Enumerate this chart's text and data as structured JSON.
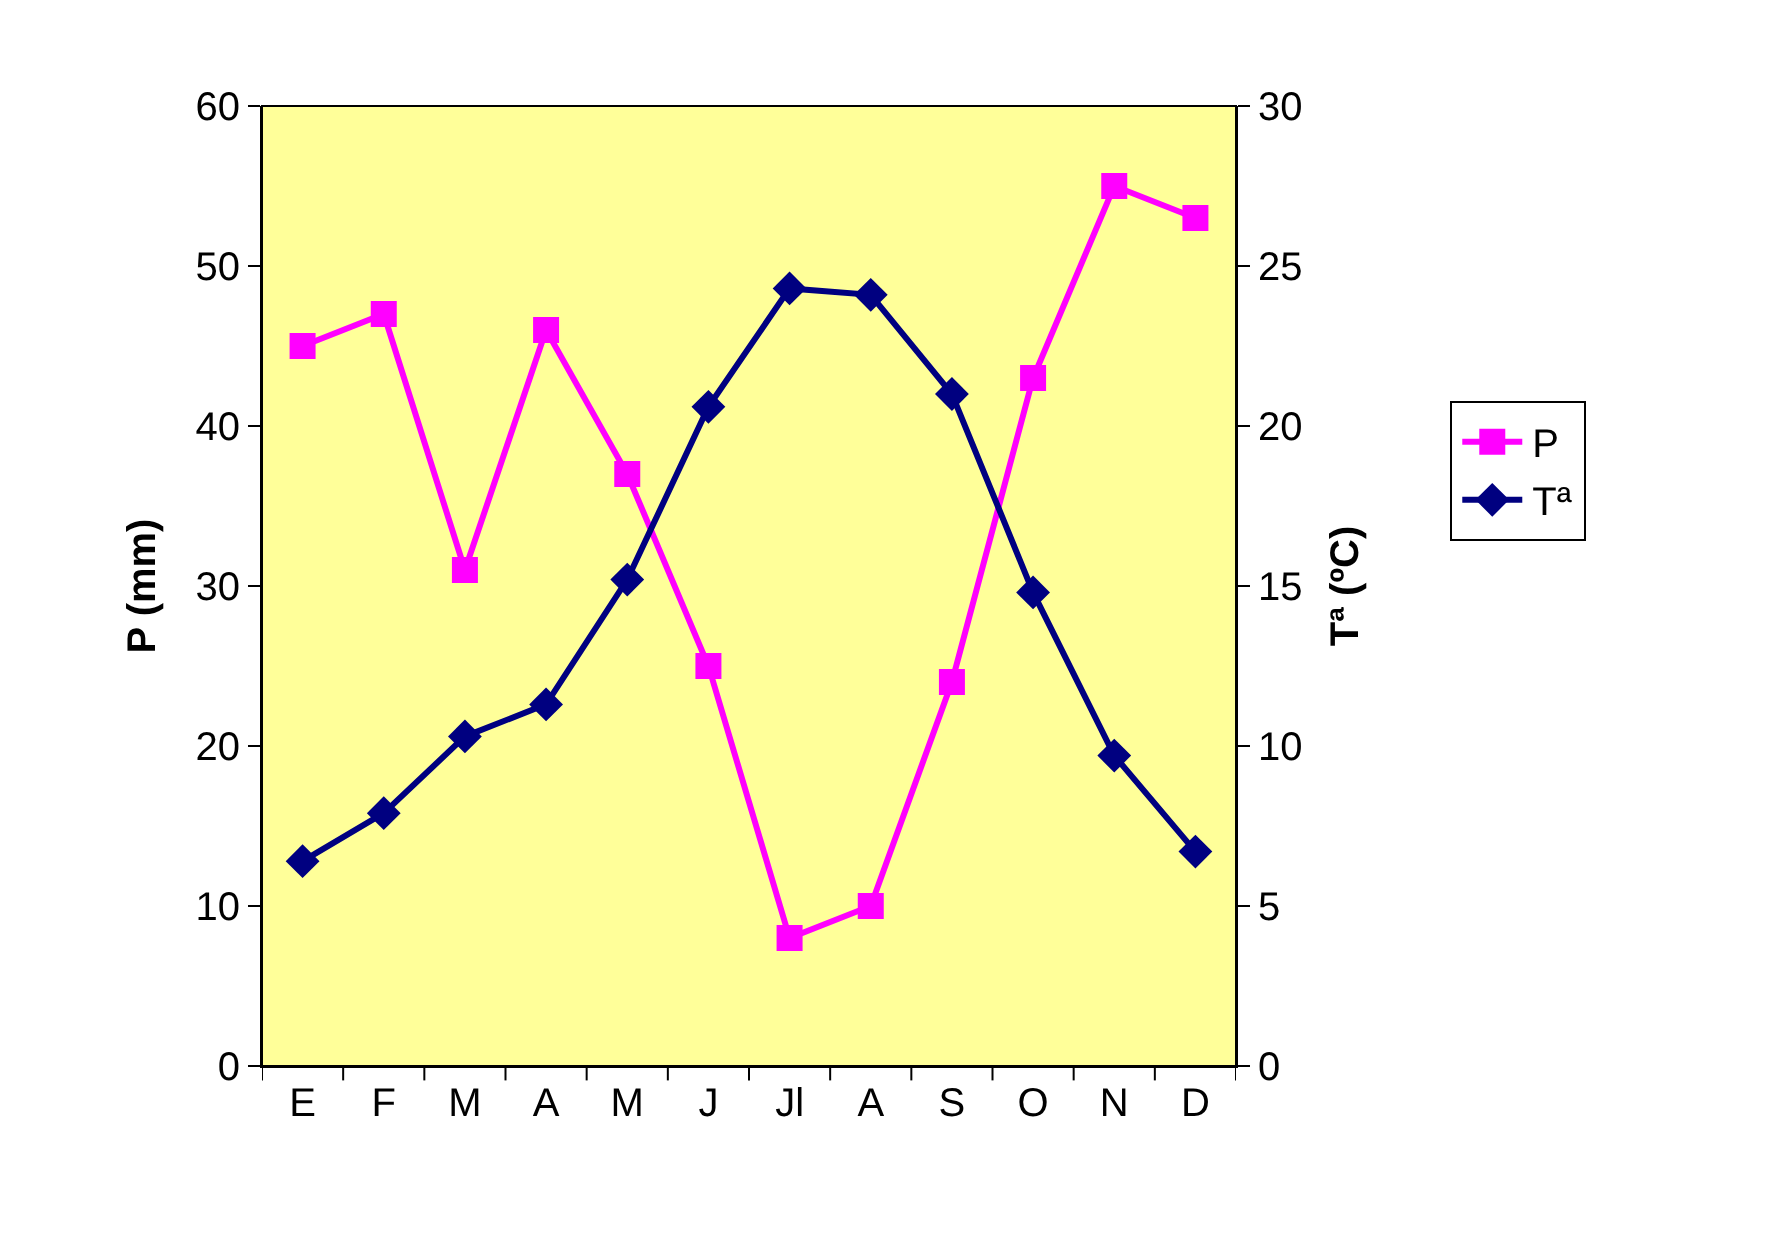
{
  "chart_data": {
    "type": "line",
    "categories": [
      "E",
      "F",
      "M",
      "A",
      "M",
      "J",
      "Jl",
      "A",
      "S",
      "O",
      "N",
      "D"
    ],
    "ylabel": "P (mm)",
    "y2label": "Tª (ºC)",
    "ylim": [
      0,
      60
    ],
    "yticks": [
      0,
      10,
      20,
      30,
      40,
      50,
      60
    ],
    "y2lim": [
      0,
      30
    ],
    "y2ticks": [
      0,
      5,
      10,
      15,
      20,
      25,
      30
    ],
    "series": [
      {
        "name": "P",
        "color": "#ff00ff",
        "marker": "square",
        "values": [
          45,
          47,
          31,
          46,
          37,
          25,
          8,
          10,
          24,
          43,
          55,
          53
        ]
      },
      {
        "name": "Tª",
        "color": "#000080",
        "marker": "diamond",
        "axis": "y2",
        "values": [
          6.4,
          7.9,
          10.3,
          11.3,
          15.2,
          20.6,
          24.3,
          24.1,
          21,
          14.8,
          9.7,
          6.7
        ]
      }
    ],
    "grid": false,
    "legend": "right",
    "line_style": "solid"
  }
}
